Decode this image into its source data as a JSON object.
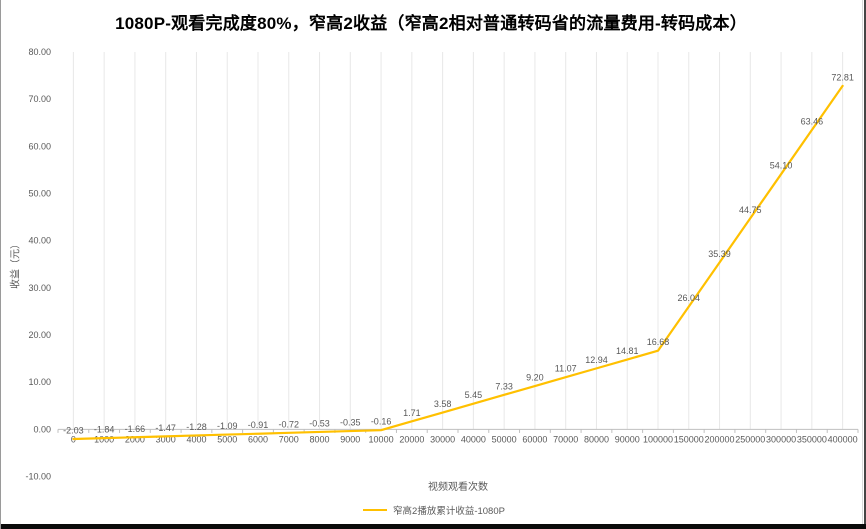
{
  "chart_data": {
    "type": "line",
    "title": "1080P-观看完成度80%，窄高2收益（窄高2相对普通转码省的流量费用-转码成本）",
    "xlabel": "视频观看次数",
    "ylabel": "收益（元）",
    "categories": [
      0,
      1000,
      2000,
      3000,
      4000,
      5000,
      6000,
      7000,
      8000,
      9000,
      10000,
      20000,
      30000,
      40000,
      50000,
      60000,
      70000,
      80000,
      90000,
      100000,
      150000,
      200000,
      250000,
      300000,
      350000,
      400000
    ],
    "series": [
      {
        "name": "窄高2播放累计收益-1080P",
        "color": "#FFC000",
        "values": [
          -2.03,
          -1.84,
          -1.66,
          -1.47,
          -1.28,
          -1.09,
          -0.91,
          -0.72,
          -0.53,
          -0.35,
          -0.16,
          1.71,
          3.58,
          5.45,
          7.33,
          9.2,
          11.07,
          12.94,
          14.81,
          16.68,
          26.04,
          35.39,
          44.75,
          54.1,
          63.46,
          72.81
        ]
      }
    ],
    "ylim": [
      -10,
      80
    ],
    "ytick_step": 10,
    "ytick_decimals": 2,
    "data_label_decimals": 2,
    "grid": "vertical",
    "legend_position": "bottom",
    "data_labels": true
  },
  "colors": {
    "series_line": "#FFC000",
    "axis_line": "#BFBFBF",
    "gridline": "#E8E8E8",
    "tick_text": "#595959",
    "title_text": "#000000"
  }
}
